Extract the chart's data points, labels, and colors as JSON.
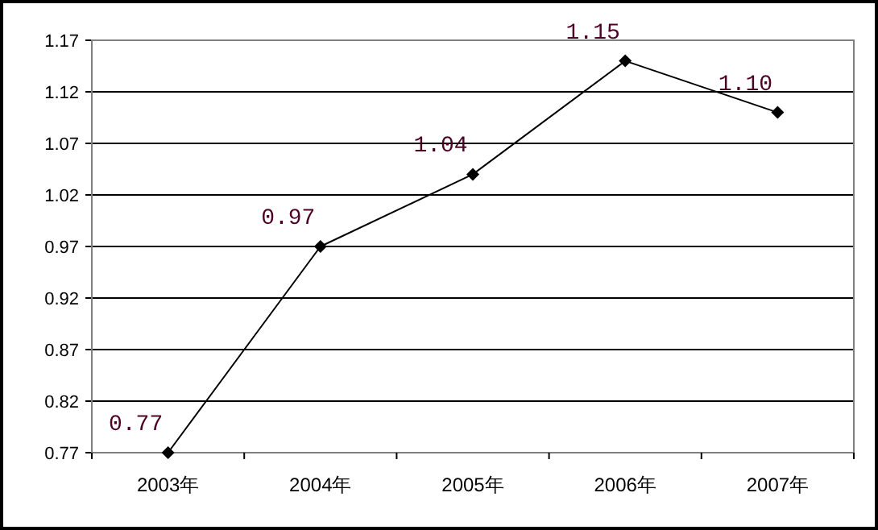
{
  "chart_data": {
    "type": "line",
    "categories": [
      "2003年",
      "2004年",
      "2005年",
      "2006年",
      "2007年"
    ],
    "series": [
      {
        "color": "#000000",
        "values": [
          0.77,
          0.97,
          1.04,
          1.15,
          1.1
        ],
        "value_labels": [
          "0.77",
          "0.97",
          "1.04",
          "1.15",
          "1.10"
        ]
      }
    ],
    "ylim": [
      0.77,
      1.17
    ],
    "yticks": [
      0.77,
      0.82,
      0.87,
      0.92,
      0.97,
      1.02,
      1.07,
      1.12,
      1.17
    ],
    "grid": "y",
    "marker": "diamond",
    "line_style": "solid"
  }
}
